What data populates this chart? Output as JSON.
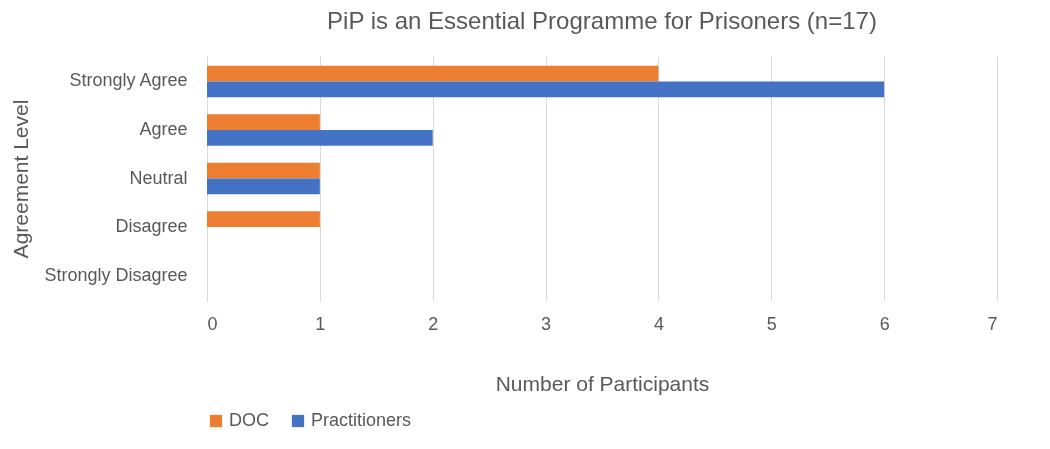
{
  "chart_data": {
    "type": "bar",
    "orientation": "horizontal",
    "title": "PiP is an Essential Programme for Prisoners (n=17)",
    "xlabel": "Number of Participants",
    "ylabel": "Agreement Level",
    "categories": [
      "Strongly Agree",
      "Agree",
      "Neutral",
      "Disagree",
      "Strongly Disagree"
    ],
    "series": [
      {
        "name": "DOC",
        "color": "#ed7d31",
        "values": [
          4,
          1,
          1,
          1,
          0
        ]
      },
      {
        "name": "Practitioners",
        "color": "#4472c4",
        "values": [
          6,
          2,
          1,
          0,
          0
        ]
      }
    ],
    "xlim": [
      0,
      7
    ],
    "xticks": [
      0,
      1,
      2,
      3,
      4,
      5,
      6,
      7
    ],
    "grid": "x",
    "legend": "bottom"
  }
}
